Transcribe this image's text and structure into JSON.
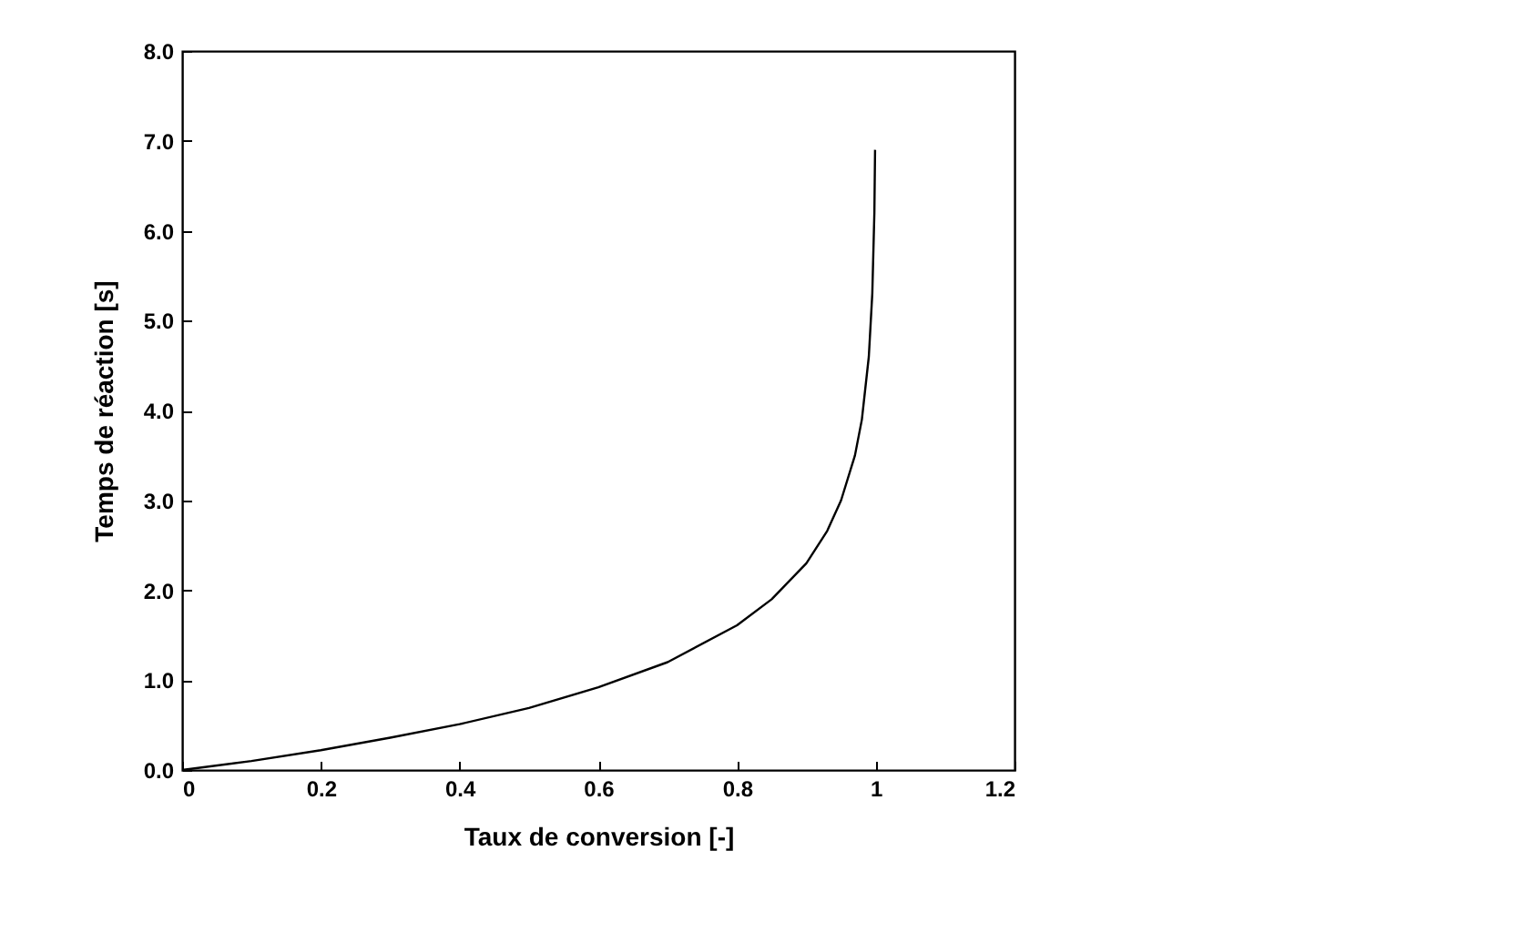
{
  "chart_data": {
    "type": "line",
    "xlabel": "Taux de conversion [-]",
    "ylabel": "Temps de réaction [s]",
    "x": [
      0,
      0.1,
      0.2,
      0.3,
      0.4,
      0.5,
      0.6,
      0.7,
      0.8,
      0.85,
      0.9,
      0.93,
      0.95,
      0.97,
      0.98,
      0.99,
      0.995,
      0.998,
      0.999
    ],
    "series": [
      {
        "color": "#000000",
        "values": [
          0,
          0.1,
          0.22,
          0.36,
          0.51,
          0.69,
          0.92,
          1.2,
          1.61,
          1.9,
          2.3,
          2.66,
          3.0,
          3.5,
          3.9,
          4.6,
          5.3,
          6.2,
          6.9
        ]
      }
    ],
    "xlim": [
      0,
      1.2
    ],
    "xticks": [
      0,
      0.2,
      0.4,
      0.6,
      0.8,
      1,
      1.2
    ],
    "ylim": [
      0,
      8
    ],
    "yticks": [
      {
        "value": 0,
        "label": "0.0"
      },
      {
        "value": 1,
        "label": "1.0"
      },
      {
        "value": 2,
        "label": "2.0"
      },
      {
        "value": 3,
        "label": "3.0"
      },
      {
        "value": 4,
        "label": "4.0"
      },
      {
        "value": 5,
        "label": "5.0"
      },
      {
        "value": 6,
        "label": "6.0"
      },
      {
        "value": 7,
        "label": "7.0"
      },
      {
        "value": 8,
        "label": "8.0"
      }
    ],
    "grid": false,
    "marker": "none",
    "line_style": "solid"
  }
}
